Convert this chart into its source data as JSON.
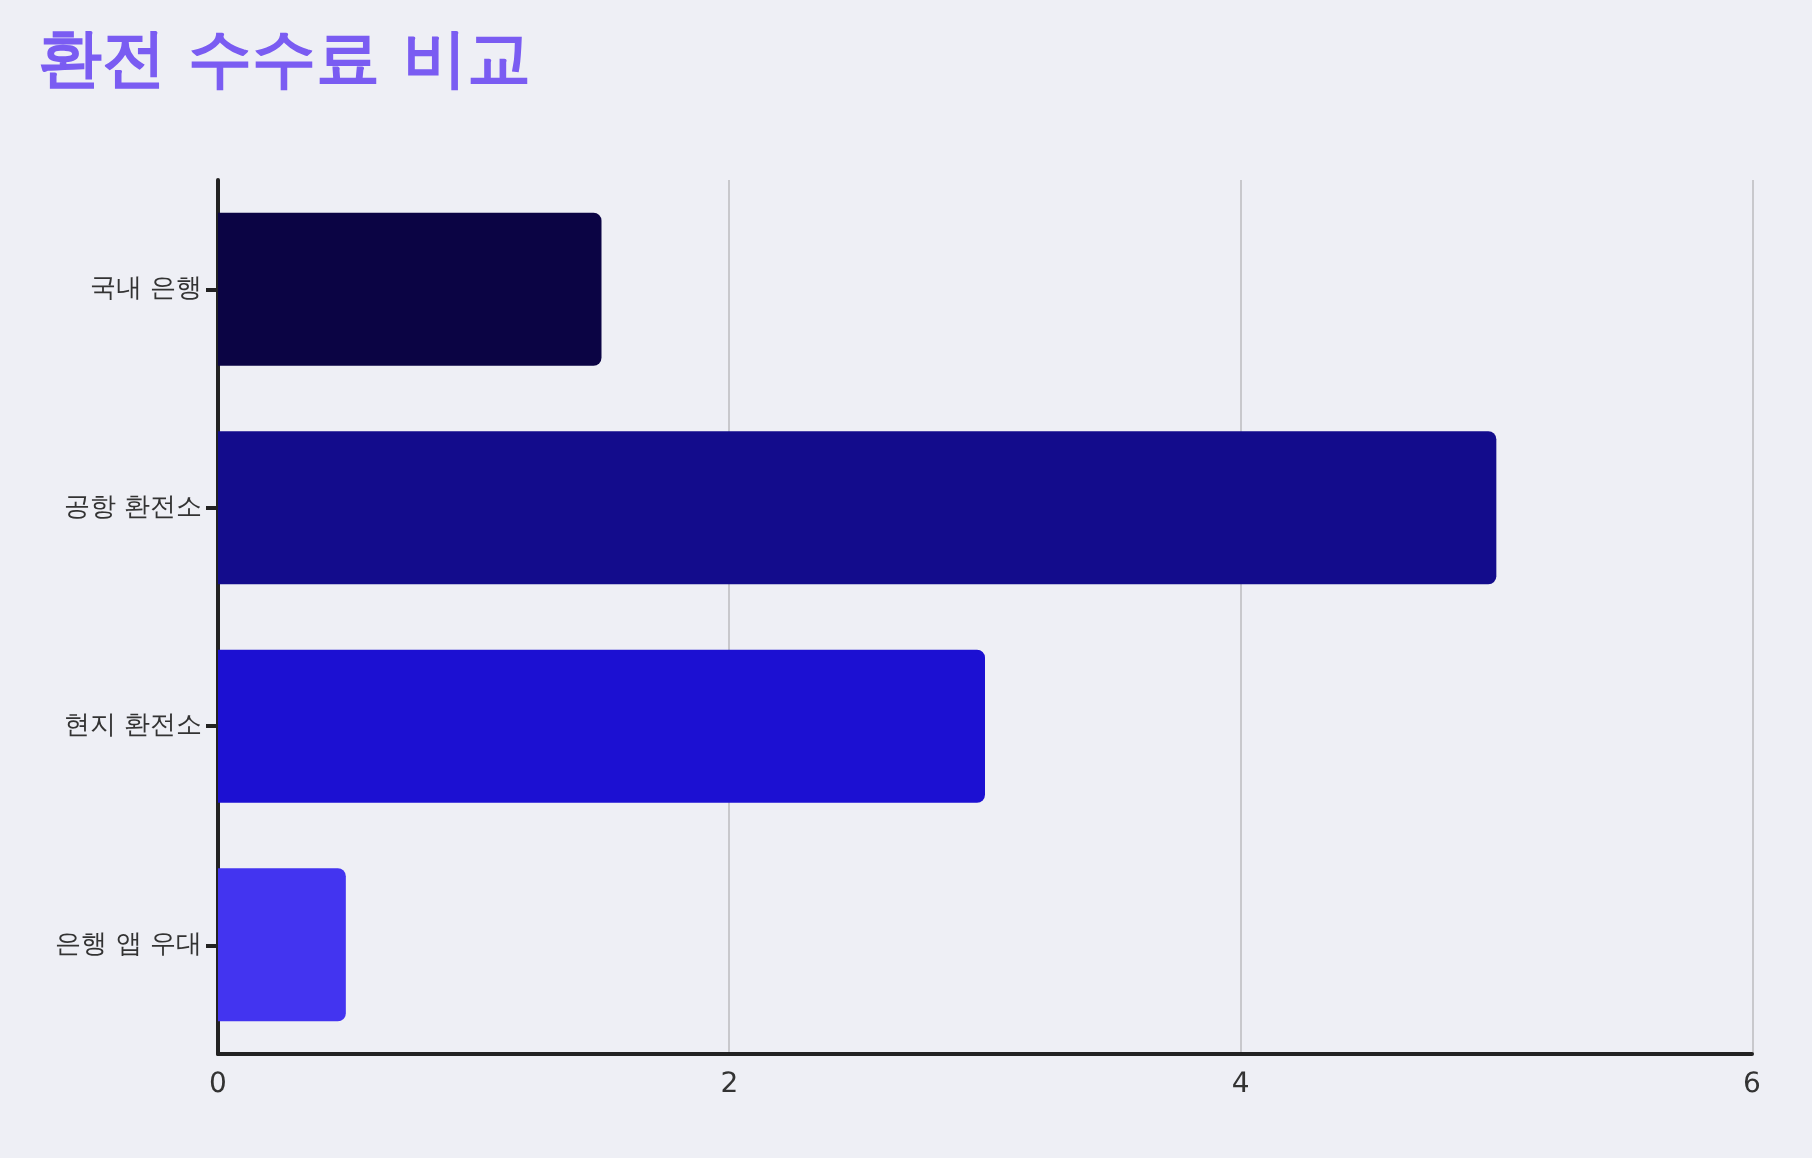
{
  "chart_data": {
    "type": "bar",
    "orientation": "horizontal",
    "title": "환전 수수료 비교",
    "categories": [
      "국내 은행",
      "공항 환전소",
      "현지 환전소",
      "은행 앱 우대"
    ],
    "values": [
      1.5,
      5,
      3,
      0.5
    ],
    "colors": [
      "#0b0444",
      "#130c8c",
      "#1c10d2",
      "#4334f0"
    ],
    "xlim": [
      0,
      6
    ],
    "xticks": [
      0,
      2,
      4,
      6
    ],
    "grid": "x"
  }
}
